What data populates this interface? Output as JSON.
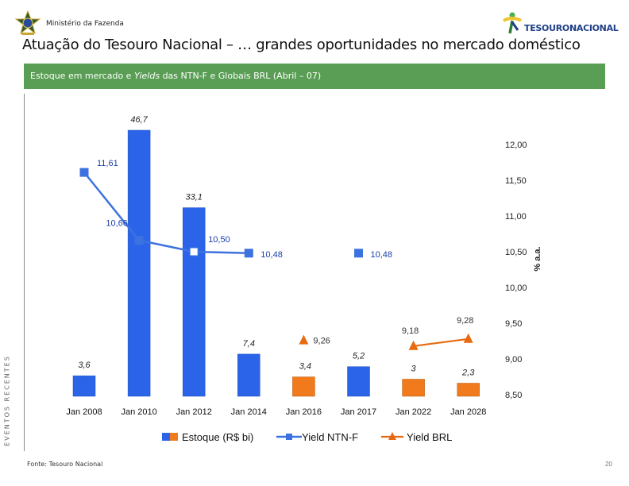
{
  "header": {
    "ministry": "Ministério da Fazenda",
    "brand": "TESOURONACIONAL",
    "title": "Atuação do Tesouro Nacional – … grandes oportunidades no mercado doméstico",
    "banner_prefix": "Estoque em mercado e ",
    "banner_italic": "Yields",
    "banner_suffix": " das NTN-F e Globais BRL (Abril – 07)",
    "side_label": "EVENTOS RECENTES"
  },
  "footer": {
    "source": "Fonte: Tesouro Nacional",
    "page": "20"
  },
  "colors": {
    "bar_blue": "#2b64e8",
    "bar_orange": "#f07a1c",
    "line_blue": "#3c72e0",
    "line_orange": "#e86a10",
    "banner_green": "#5a9e55"
  },
  "chart_data": {
    "type": "bar",
    "categories": [
      "Jan 2008",
      "Jan 2010",
      "Jan 2012",
      "Jan 2014",
      "Jan 2016",
      "Jan 2017",
      "Jan 2022",
      "Jan 2028"
    ],
    "series": [
      {
        "name": "Estoque (R$ bi)",
        "axis": "left",
        "values": [
          3.6,
          46.7,
          33.1,
          7.4,
          3.4,
          5.2,
          3,
          2.3
        ],
        "labels": [
          "3,6",
          "46,7",
          "33,1",
          "7,4",
          "3,4",
          "5,2",
          "3",
          "2,3"
        ],
        "bar_colors": [
          "blue",
          "blue",
          "blue",
          "blue",
          "orange",
          "blue",
          "orange",
          "orange"
        ]
      },
      {
        "name": "Yield NTN-F",
        "type": "line",
        "axis": "right",
        "x": [
          "Jan 2008",
          "Jan 2010",
          "Jan 2012",
          "Jan 2014",
          "Jan 2017"
        ],
        "values": [
          11.61,
          10.66,
          10.5,
          10.48,
          10.48
        ],
        "labels": [
          "11,61",
          "10,66",
          "10,50",
          "10,48",
          "10,48"
        ],
        "connected": [
          true,
          true,
          true,
          true,
          false
        ]
      },
      {
        "name": "Yield BRL",
        "type": "line",
        "axis": "right",
        "x": [
          "Jan 2016",
          "Jan 2022",
          "Jan 2028"
        ],
        "values": [
          9.26,
          9.18,
          9.28
        ],
        "labels": [
          "9,26",
          "9,18",
          "9,28"
        ],
        "connected": [
          false,
          true,
          true
        ]
      }
    ],
    "y_right": {
      "ylim": [
        8.5,
        12.0
      ],
      "ticks": [
        "12,00",
        "11,50",
        "11,00",
        "10,50",
        "10,00",
        "9,50",
        "9,00",
        "8,50"
      ],
      "tick_values": [
        12.0,
        11.5,
        11.0,
        10.5,
        10.0,
        9.5,
        9.0,
        8.5
      ],
      "label": "% a.a."
    },
    "y_left": {
      "ylim": [
        0,
        50
      ]
    },
    "legend": [
      "Estoque (R$ bi)",
      "Yield NTN-F",
      "Yield BRL"
    ],
    "legend_position": "bottom"
  }
}
